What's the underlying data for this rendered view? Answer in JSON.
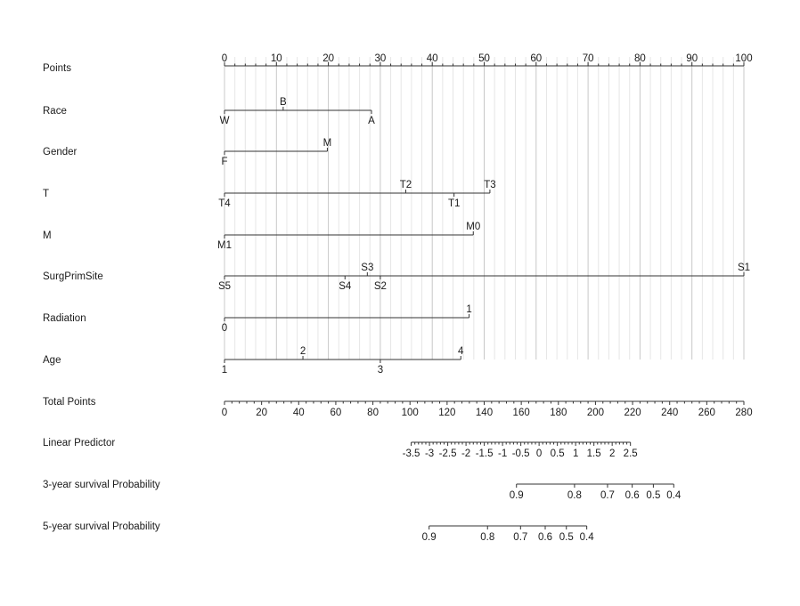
{
  "chart_data": {
    "type": "nomogram",
    "grid": true,
    "points_axis": {
      "label": "Points",
      "min": 0,
      "max": 100,
      "major": [
        0,
        10,
        20,
        30,
        40,
        50,
        60,
        70,
        80,
        90,
        100
      ]
    },
    "variables": [
      {
        "name": "Race",
        "levels": [
          {
            "label": "W",
            "points": 0,
            "side": "below"
          },
          {
            "label": "B",
            "points": 11.3,
            "side": "above"
          },
          {
            "label": "A",
            "points": 28.3,
            "side": "below"
          }
        ]
      },
      {
        "name": "Gender",
        "levels": [
          {
            "label": "F",
            "points": 0,
            "side": "below"
          },
          {
            "label": "M",
            "points": 19.8,
            "side": "above"
          }
        ]
      },
      {
        "name": "T",
        "levels": [
          {
            "label": "T4",
            "points": 0,
            "side": "below"
          },
          {
            "label": "T2",
            "points": 34.9,
            "side": "above"
          },
          {
            "label": "T1",
            "points": 44.2,
            "side": "below"
          },
          {
            "label": "T3",
            "points": 51.1,
            "side": "above"
          }
        ]
      },
      {
        "name": "M",
        "levels": [
          {
            "label": "M1",
            "points": 0,
            "side": "below"
          },
          {
            "label": "M0",
            "points": 47.9,
            "side": "above"
          }
        ]
      },
      {
        "name": "SurgPrimSite",
        "levels": [
          {
            "label": "S5",
            "points": 0,
            "side": "below"
          },
          {
            "label": "S4",
            "points": 23.2,
            "side": "below"
          },
          {
            "label": "S3",
            "points": 27.5,
            "side": "above"
          },
          {
            "label": "S2",
            "points": 30.0,
            "side": "below"
          },
          {
            "label": "S1",
            "points": 100,
            "side": "above"
          }
        ]
      },
      {
        "name": "Radiation",
        "levels": [
          {
            "label": "0",
            "points": 0,
            "side": "below"
          },
          {
            "label": "1",
            "points": 47.1,
            "side": "above"
          }
        ]
      },
      {
        "name": "Age",
        "levels": [
          {
            "label": "1",
            "points": 0,
            "side": "below"
          },
          {
            "label": "2",
            "points": 15.1,
            "side": "above"
          },
          {
            "label": "3",
            "points": 30.0,
            "side": "below"
          },
          {
            "label": "4",
            "points": 45.5,
            "side": "above"
          }
        ]
      }
    ],
    "total_points": {
      "label": "Total Points",
      "min": 0,
      "max": 280,
      "ticks": [
        0,
        20,
        40,
        60,
        80,
        100,
        120,
        140,
        160,
        180,
        200,
        220,
        240,
        260,
        280
      ]
    },
    "linear_predictor": {
      "label": "Linear Predictor",
      "ticks": [
        {
          "label": "-3.5",
          "value": -3.5
        },
        {
          "label": "-3",
          "value": -3
        },
        {
          "label": "-2.5",
          "value": -2.5
        },
        {
          "label": "-2",
          "value": -2
        },
        {
          "label": "-1.5",
          "value": -1.5
        },
        {
          "label": "-1",
          "value": -1
        },
        {
          "label": "-0.5",
          "value": -0.5
        },
        {
          "label": "0",
          "value": 0
        },
        {
          "label": "0.5",
          "value": 0.5
        },
        {
          "label": "1",
          "value": 1
        },
        {
          "label": "1.5",
          "value": 1.5
        },
        {
          "label": "2",
          "value": 2
        },
        {
          "label": "2.5",
          "value": 2.5
        }
      ],
      "total_points_at_zero": 169.6,
      "total_points_per_unit": 19.7
    },
    "survival_scales": [
      {
        "label": "3-year survival Probability",
        "ticks": [
          {
            "label": "0.9",
            "total_points": 157.4
          },
          {
            "label": "0.8",
            "total_points": 188.7
          },
          {
            "label": "0.7",
            "total_points": 206.5
          },
          {
            "label": "0.6",
            "total_points": 219.8
          },
          {
            "label": "0.5",
            "total_points": 231.2
          },
          {
            "label": "0.4",
            "total_points": 242.2
          }
        ]
      },
      {
        "label": "5-year survival Probability",
        "ticks": [
          {
            "label": "0.9",
            "total_points": 110.3
          },
          {
            "label": "0.8",
            "total_points": 141.8
          },
          {
            "label": "0.7",
            "total_points": 159.6
          },
          {
            "label": "0.6",
            "total_points": 172.9
          },
          {
            "label": "0.5",
            "total_points": 184.3
          },
          {
            "label": "0.4",
            "total_points": 195.3
          }
        ]
      }
    ]
  }
}
